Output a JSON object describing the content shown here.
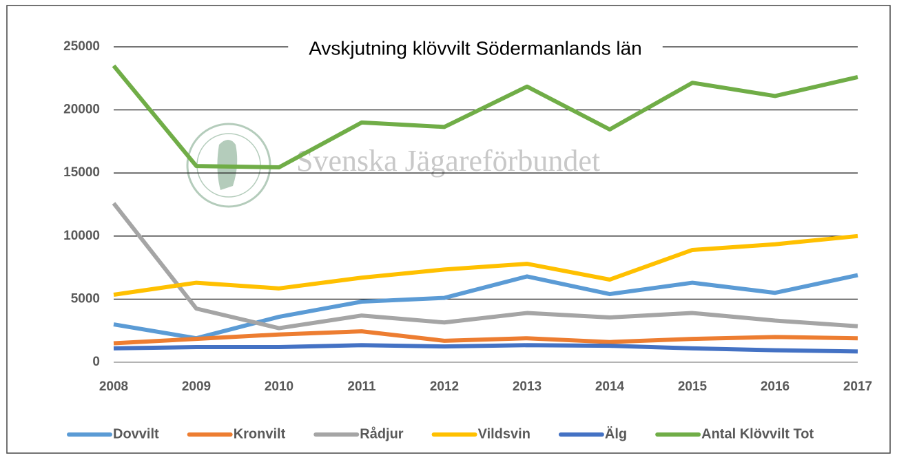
{
  "chart_data": {
    "type": "line",
    "title": "Avskjutning klövvilt Södermanlands län",
    "watermark": "Svenska Jägareförbundet",
    "categories": [
      "2008",
      "2009",
      "2010",
      "2011",
      "2012",
      "2013",
      "2014",
      "2015",
      "2016",
      "2017"
    ],
    "series": [
      {
        "name": "Dovvilt",
        "color": "#5b9bd5",
        "values": [
          3000,
          1900,
          3600,
          4800,
          5100,
          6800,
          5400,
          6300,
          5500,
          6900
        ]
      },
      {
        "name": "Kronvilt",
        "color": "#ed7d31",
        "values": [
          1500,
          1850,
          2200,
          2450,
          1700,
          1900,
          1600,
          1850,
          2000,
          1900
        ]
      },
      {
        "name": "Rådjur",
        "color": "#a5a5a5",
        "values": [
          12600,
          4250,
          2700,
          3700,
          3150,
          3900,
          3550,
          3900,
          3300,
          2850
        ]
      },
      {
        "name": "Vildsvin",
        "color": "#ffc000",
        "values": [
          5350,
          6300,
          5850,
          6700,
          7350,
          7800,
          6550,
          8900,
          9350,
          10000
        ]
      },
      {
        "name": "Älg",
        "color": "#4472c4",
        "values": [
          1100,
          1200,
          1200,
          1350,
          1250,
          1350,
          1300,
          1100,
          950,
          850
        ]
      },
      {
        "name": "Antal Klövvilt Tot",
        "color": "#70ad47",
        "values": [
          23500,
          15550,
          15450,
          19000,
          18650,
          21850,
          18450,
          22150,
          21100,
          22600
        ]
      }
    ],
    "ylim": [
      0,
      25000
    ],
    "yticks": [
      0,
      5000,
      10000,
      15000,
      20000,
      25000
    ],
    "grid": true,
    "legend": "bottom"
  }
}
